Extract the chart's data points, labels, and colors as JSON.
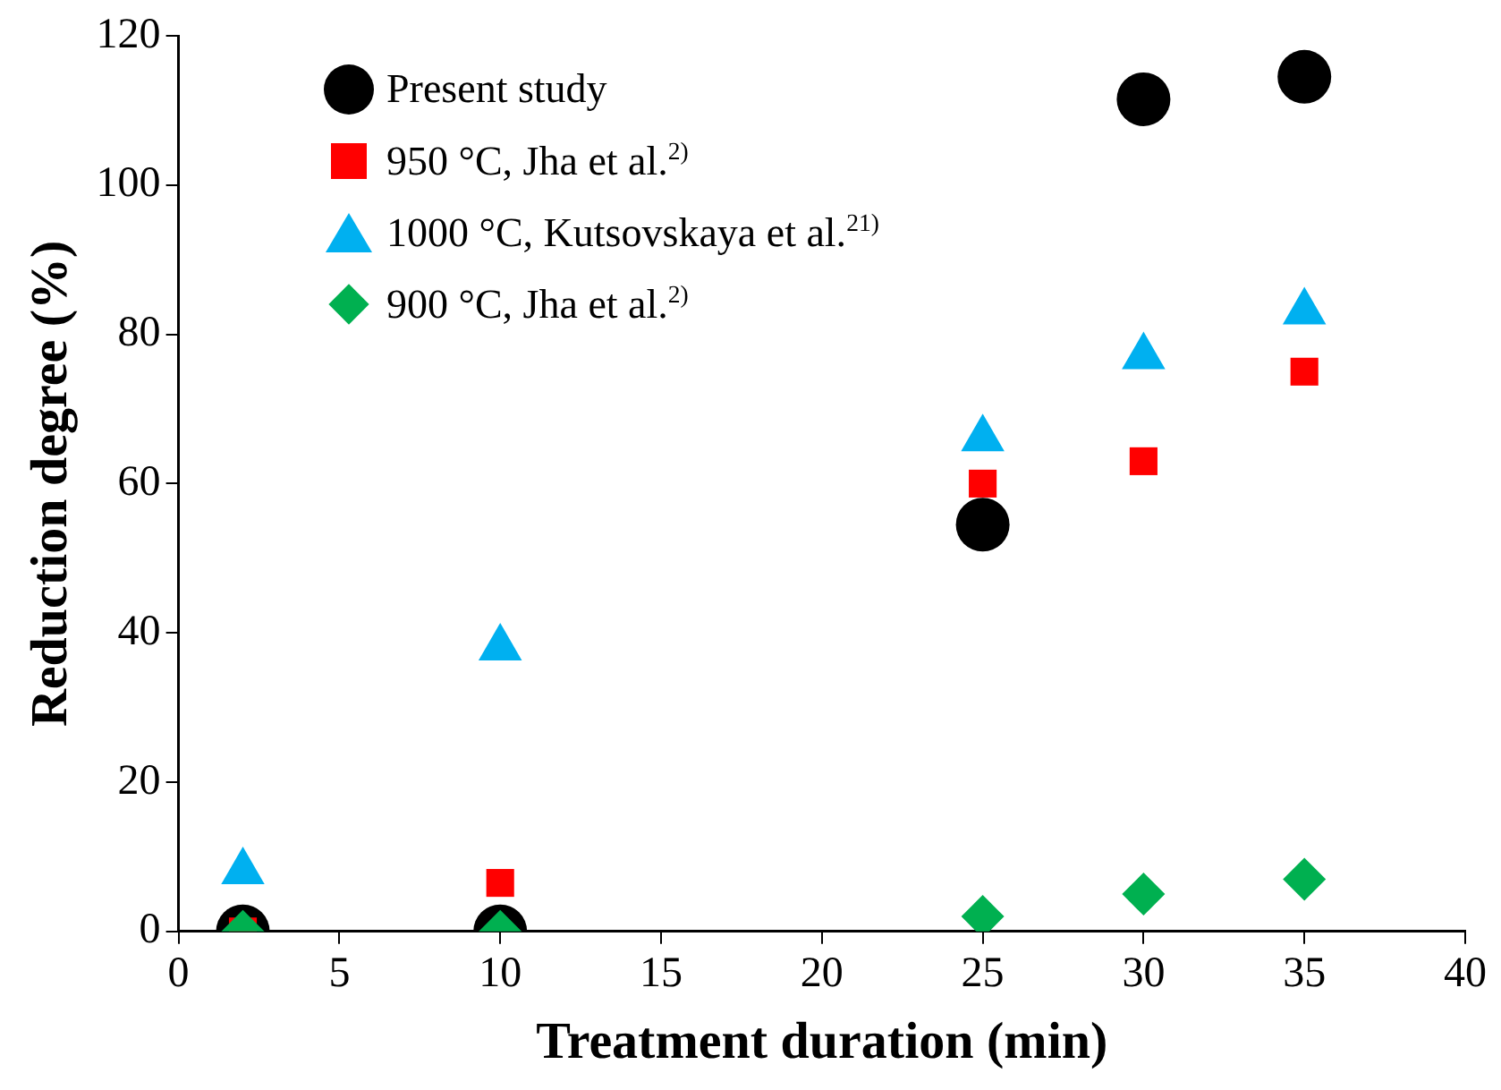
{
  "chart_data": {
    "type": "scatter",
    "xlabel": "Treatment duration (min)",
    "ylabel": "Reduction degree (%)",
    "xlim": [
      0,
      40
    ],
    "xticks": [
      0,
      5,
      10,
      15,
      20,
      25,
      30,
      35,
      40
    ],
    "ylim": [
      0,
      120
    ],
    "yticks": [
      0,
      20,
      40,
      60,
      80,
      100,
      120
    ],
    "grid": false,
    "legend": "top left",
    "series": [
      {
        "name": "Present study",
        "color": "#000000",
        "marker": "circle",
        "x": [
          2,
          10,
          25,
          30,
          35
        ],
        "values": [
          0,
          0,
          54.5,
          111.5,
          114.5
        ]
      },
      {
        "name": "950 °C, Jha et al.$^{2)}$",
        "color": "#ff0000",
        "marker": "square",
        "x": [
          2,
          10,
          25,
          30,
          35
        ],
        "values": [
          0,
          6.5,
          60,
          63,
          75
        ]
      },
      {
        "name": "1000 °C, Kutsovskaya et al.$^{21)}$",
        "color": "#00b0f0",
        "marker": "triangle",
        "x": [
          2,
          10,
          25,
          30,
          35
        ],
        "values": [
          8,
          38,
          66,
          77,
          83
        ]
      },
      {
        "name": "900 °C, Jha et al.$^{2)}$",
        "color": "#00b050",
        "marker": "diamond",
        "x": [
          2,
          10,
          25,
          30,
          35
        ],
        "values": [
          0,
          0,
          2,
          5,
          7
        ]
      }
    ]
  }
}
